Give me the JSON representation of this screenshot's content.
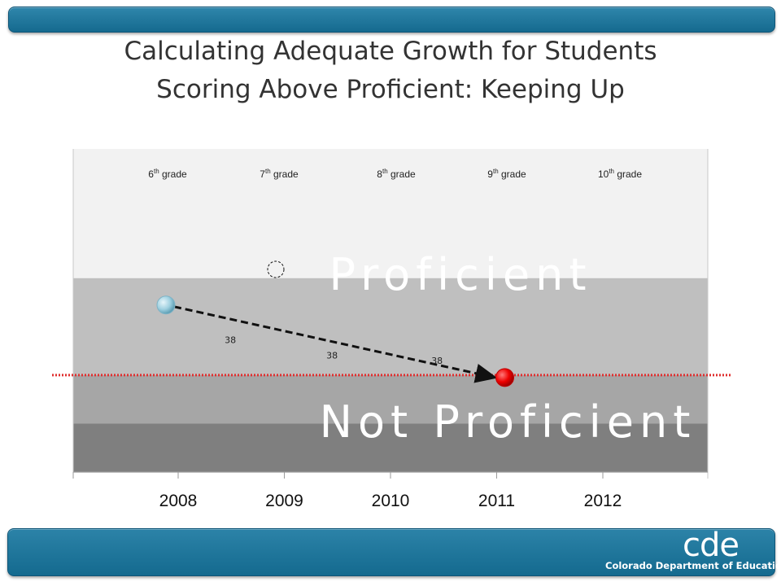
{
  "title_line1": "Calculating Adequate Growth for Students",
  "title_line2": "Scoring Above Proficient: Keeping Up",
  "logo": {
    "mark": "cde",
    "text": "Colorado Department of Education"
  },
  "colors": {
    "bar": "#1a7399",
    "advanced_band": "#f2f2f2",
    "proficient_band": "#bfbfbf",
    "partially_band": "#a6a6a6",
    "unsatisfactory_band": "#7f7f7f",
    "start_point": "#a6d3e3",
    "target_point": "#ff0000",
    "cut_line": "#e03030"
  },
  "chart_data": {
    "type": "line",
    "title": "",
    "xlabel": "",
    "ylabel": "",
    "x": [
      "2008",
      "2009",
      "2010",
      "2011",
      "2012"
    ],
    "grades": [
      {
        "num": "6",
        "sup": "th",
        "word": "grade"
      },
      {
        "num": "7",
        "sup": "th",
        "word": "grade"
      },
      {
        "num": "8",
        "sup": "th",
        "word": "grade"
      },
      {
        "num": "9",
        "sup": "th",
        "word": "grade"
      },
      {
        "num": "10",
        "sup": "th",
        "word": "grade"
      }
    ],
    "bands": [
      {
        "label": "",
        "from": 4,
        "to": 3
      },
      {
        "label": "Proficient",
        "from": 3,
        "to": 1.5
      },
      {
        "label": "Not Proficient",
        "from": 1.5,
        "to": 0.75
      },
      {
        "label": "",
        "from": 0.75,
        "to": 0
      }
    ],
    "ylim": [
      0,
      5
    ],
    "series": [
      {
        "name": "",
        "points": [
          {
            "x": "2008",
            "y": 3.0
          },
          {
            "x": "2011",
            "y": 1.5
          }
        ],
        "line_style": "dashed",
        "arrow": true
      }
    ],
    "segment_labels": [
      "38",
      "38",
      "38"
    ],
    "cut_line_y": 1.5,
    "grid": false,
    "legend": "none"
  }
}
